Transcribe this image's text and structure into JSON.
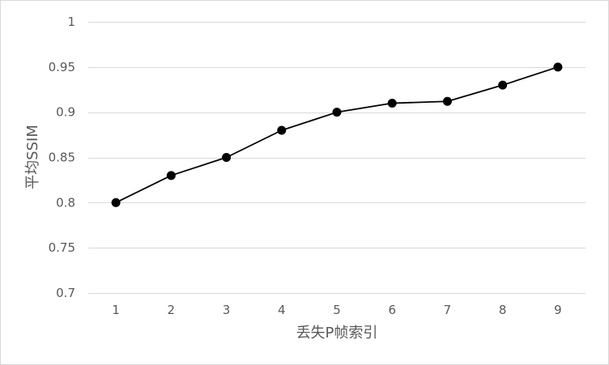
{
  "chart_data": {
    "type": "line",
    "title": "",
    "xlabel": "丢失P帧索引",
    "ylabel": "平均SSIM",
    "x": [
      1,
      2,
      3,
      4,
      5,
      6,
      7,
      8,
      9
    ],
    "x_tick_labels": [
      "1",
      "2",
      "3",
      "4",
      "5",
      "6",
      "7",
      "8",
      "9"
    ],
    "series": [
      {
        "values": [
          0.8,
          0.83,
          0.85,
          0.88,
          0.9,
          0.91,
          0.912,
          0.93,
          0.95
        ]
      }
    ],
    "ylim": [
      0.7,
      1
    ],
    "y_ticks": [
      0.7,
      0.75,
      0.8,
      0.85,
      0.9,
      0.95,
      1
    ],
    "y_tick_labels": [
      "0.7",
      "0.75",
      "0.8",
      "0.85",
      "0.9",
      "0.95",
      "1"
    ],
    "grid": "horizontal",
    "legend": "none",
    "colors": {
      "line": "#000000",
      "marker": "#000000",
      "grid": "#d9d9d9",
      "text": "#595959",
      "border": "#d9d9d9"
    }
  }
}
